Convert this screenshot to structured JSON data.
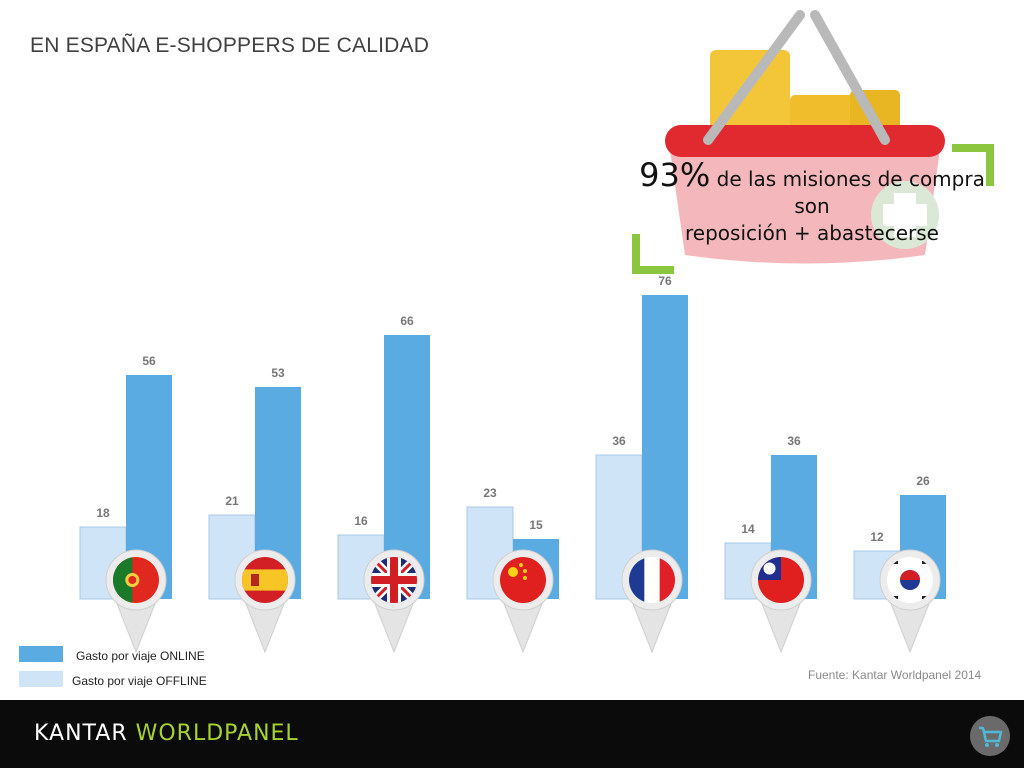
{
  "header": {
    "title": "EN ESPAÑA E-SHOPPERS DE CALIDAD"
  },
  "callout": {
    "big": "93%",
    "line1_rest": " de las misiones de compra",
    "line2": "son",
    "line3": "reposición + abastecerse"
  },
  "chart_data": {
    "type": "bar",
    "categories": [
      "Portugal",
      "España",
      "Reino Unido",
      "China",
      "Francia",
      "Taiwán",
      "Corea del Sur"
    ],
    "series": [
      {
        "name": "Gasto por viaje OFFLINE",
        "values": [
          18,
          21,
          16,
          23,
          36,
          14,
          12
        ],
        "color": "#cfe4f7"
      },
      {
        "name": "Gasto por viaje ONLINE",
        "values": [
          56,
          53,
          66,
          15,
          76,
          36,
          26
        ],
        "color": "#5aabe2"
      }
    ],
    "flags": [
      "portugal-flag-icon",
      "spain-flag-icon",
      "uk-flag-icon",
      "china-flag-icon",
      "france-flag-icon",
      "taiwan-flag-icon",
      "south-korea-flag-icon"
    ],
    "legend": "bottom-left",
    "grid": false
  },
  "legend": {
    "online": "Gasto por viaje ONLINE",
    "offline": "Gasto por viaje OFFLINE"
  },
  "source": "Fuente: Kantar Worldpanel 2014",
  "footer": {
    "brand_left": "KANTAR ",
    "brand_right": "WORLDPANEL",
    "icon": "cart-icon"
  },
  "colors": {
    "online": "#5aabe2",
    "offline": "#cfe4f7",
    "accent": "#a6d22e",
    "basket": "#e02a30"
  }
}
